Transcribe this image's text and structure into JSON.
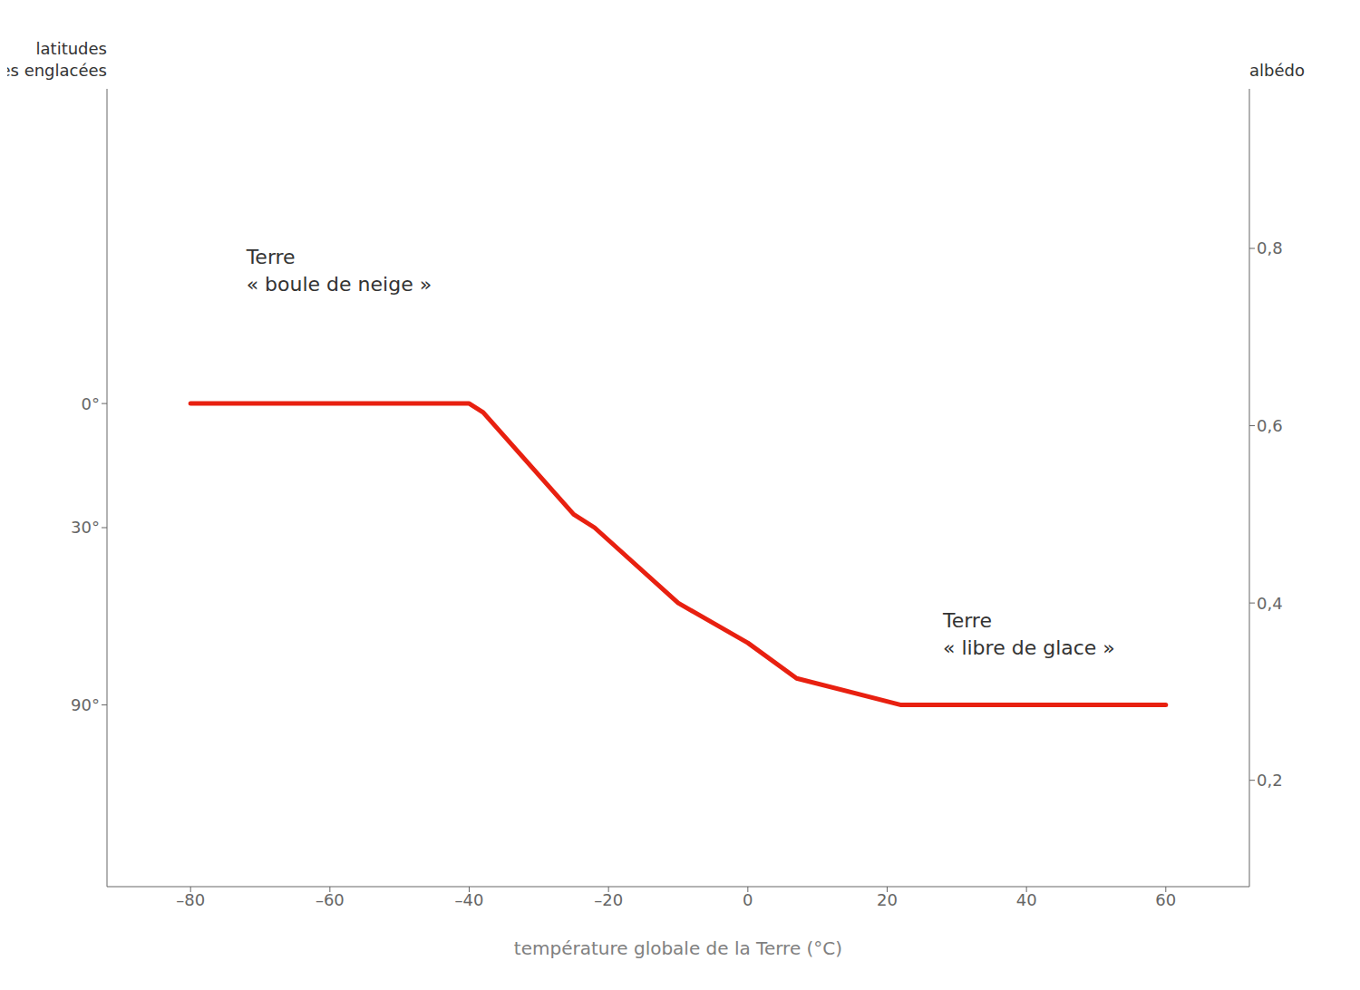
{
  "chart_data": {
    "type": "line",
    "x": [
      -80,
      -40,
      -38,
      -25,
      -22,
      -10,
      0,
      7,
      22,
      60
    ],
    "values": [
      0.625,
      0.625,
      0.615,
      0.5,
      0.485,
      0.4,
      0.355,
      0.315,
      0.285,
      0.285
    ],
    "color": "#e82010",
    "xlabel": "température globale de la Terre (°C)",
    "ylabel": "latitudes\ndes surfaces englacées",
    "y2label": "albédo",
    "xlim": [
      -92,
      72
    ],
    "xticks": [
      {
        "value": -80,
        "label": "–80"
      },
      {
        "value": -60,
        "label": "–60"
      },
      {
        "value": -40,
        "label": "–40"
      },
      {
        "value": -20,
        "label": "–20"
      },
      0,
      20,
      40,
      60
    ],
    "ylim": [
      0.08,
      0.98
    ],
    "yticks": [
      {
        "value": 0.625,
        "label": "0°"
      },
      {
        "value": 0.485,
        "label": "30°"
      },
      {
        "value": 0.285,
        "label": "90°"
      }
    ],
    "y2lim": [
      0.08,
      0.98
    ],
    "y2ticks": [
      {
        "value": 0.8,
        "label": "0,8"
      },
      {
        "value": 0.6,
        "label": "0,6"
      },
      {
        "value": 0.4,
        "label": "0,4"
      },
      {
        "value": 0.2,
        "label": "0,2"
      }
    ],
    "annotations": [
      {
        "text": "Terre\n« boule de neige »",
        "x": -72,
        "y": 0.775
      },
      {
        "text": "Terre\n« libre de glace »",
        "x": 28,
        "y": 0.365
      }
    ],
    "grid": false
  }
}
